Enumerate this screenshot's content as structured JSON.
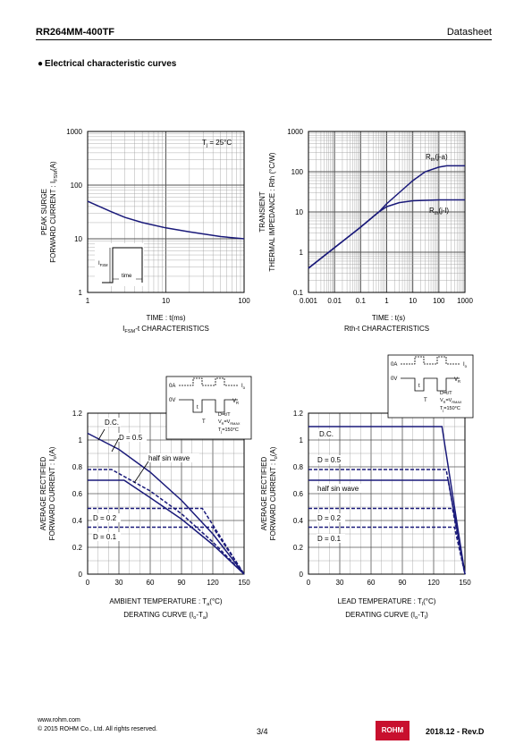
{
  "header": {
    "part_number": "RR264MM-400TF",
    "doc_type": "Datasheet",
    "section": "Electrical characteristic curves",
    "bullet": "●"
  },
  "chart_data": [
    {
      "type": "line",
      "id": "ifsm-t",
      "xscale": "log",
      "yscale": "log",
      "xlim": [
        1,
        100
      ],
      "ylim": [
        1,
        1000
      ],
      "x_ticks": [
        "1",
        "10",
        "100"
      ],
      "y_ticks": [
        "1",
        "10",
        "100",
        "1000"
      ],
      "xlabel": "TIME : t(ms)",
      "ylabel_line1": "PEAK SURGE",
      "ylabel_line2": "FORWARD CURRENT : I",
      "ylabel_sub": "FSM",
      "ylabel_unit": "(A)",
      "caption": "-t CHARACTERISTICS",
      "caption_prefix": "I",
      "caption_sub": "FSM",
      "annotation": "T",
      "annotation_sub": "j",
      "annotation_value": " = 25°C",
      "inset_label": "I",
      "inset_label_sub": "FSM",
      "inset_time": "time",
      "series": [
        {
          "values": [
            [
              1,
              50
            ],
            [
              2,
              32
            ],
            [
              3,
              25
            ],
            [
              5,
              20
            ],
            [
              10,
              16
            ],
            [
              20,
              13.5
            ],
            [
              50,
              11
            ],
            [
              100,
              10
            ]
          ]
        }
      ]
    },
    {
      "type": "line",
      "id": "rth-t",
      "xscale": "log",
      "yscale": "log",
      "xlim": [
        0.001,
        1000
      ],
      "ylim": [
        0.1,
        1000
      ],
      "x_ticks": [
        "0.001",
        "0.01",
        "0.1",
        "1",
        "10",
        "100",
        "1000"
      ],
      "y_ticks": [
        "0.1",
        "1",
        "10",
        "100",
        "1000"
      ],
      "xlabel": "TIME : t(s)",
      "ylabel_line1": "TRANSIENT",
      "ylabel_line2": "THERMAL IMPEDANCE : Rth (°C/W)",
      "caption": "Rth-t CHARACTERISTICS",
      "series": [
        {
          "name": "R",
          "name_sub": "th",
          "name_suffix": "(j-a)",
          "values": [
            [
              0.001,
              0.4
            ],
            [
              0.01,
              1.3
            ],
            [
              0.1,
              4.2
            ],
            [
              0.5,
              10
            ],
            [
              1,
              16
            ],
            [
              3,
              30
            ],
            [
              10,
              60
            ],
            [
              30,
              100
            ],
            [
              100,
              130
            ],
            [
              200,
              140
            ],
            [
              1000,
              140
            ]
          ]
        },
        {
          "name": "R",
          "name_sub": "th",
          "name_suffix": "(j-l)",
          "values": [
            [
              0.001,
              0.4
            ],
            [
              0.01,
              1.3
            ],
            [
              0.1,
              4.2
            ],
            [
              0.5,
              10
            ],
            [
              1,
              13.5
            ],
            [
              3,
              17
            ],
            [
              10,
              19
            ],
            [
              100,
              20
            ],
            [
              1000,
              20
            ]
          ]
        }
      ]
    },
    {
      "type": "line",
      "id": "io-ta",
      "xlim": [
        0,
        150
      ],
      "ylim": [
        0,
        1.2
      ],
      "x_ticks": [
        "0",
        "30",
        "60",
        "90",
        "120",
        "150"
      ],
      "y_ticks": [
        "0",
        "0.2",
        "0.4",
        "0.6",
        "0.8",
        "1",
        "1.2"
      ],
      "xlabel_prefix": "AMBIENT TEMPERATURE : T",
      "xlabel_sub": "a",
      "xlabel_unit": "(°C)",
      "ylabel_line1": "AVERAGE RECTIFIED",
      "ylabel_line2": "FORWARD CURRENT : I",
      "ylabel_sub": "o",
      "ylabel_unit": "(A)",
      "caption_prefix": "DERATING CURVE (I",
      "caption_sub1": "o",
      "caption_mid": "-T",
      "caption_sub2": "a",
      "caption_suffix": ")",
      "series": [
        {
          "name": "D.C.",
          "dash": false,
          "values": [
            [
              0,
              1.05
            ],
            [
              30,
              0.93
            ],
            [
              60,
              0.76
            ],
            [
              90,
              0.55
            ],
            [
              120,
              0.3
            ],
            [
              150,
              0
            ]
          ]
        },
        {
          "name": "D = 0.5",
          "dash": true,
          "values": [
            [
              0,
              0.78
            ],
            [
              23,
              0.78
            ],
            [
              60,
              0.62
            ],
            [
              90,
              0.45
            ],
            [
              120,
              0.24
            ],
            [
              150,
              0
            ]
          ]
        },
        {
          "name": "half sin wave",
          "dash": false,
          "values": [
            [
              0,
              0.7
            ],
            [
              35,
              0.7
            ],
            [
              60,
              0.57
            ],
            [
              90,
              0.41
            ],
            [
              120,
              0.22
            ],
            [
              150,
              0
            ]
          ]
        },
        {
          "name": "D = 0.2",
          "dash": true,
          "values": [
            [
              0,
              0.49
            ],
            [
              110,
              0.49
            ],
            [
              150,
              0
            ]
          ]
        },
        {
          "name": "D = 0.1",
          "dash": true,
          "values": [
            [
              0,
              0.35
            ],
            [
              120,
              0.35
            ],
            [
              150,
              0
            ]
          ]
        }
      ],
      "labels": [
        "D.C.",
        "D = 0.5",
        "half sin wave",
        "D = 0.2",
        "D = 0.1"
      ]
    },
    {
      "type": "line",
      "id": "io-tl",
      "xlim": [
        0,
        150
      ],
      "ylim": [
        0,
        1.2
      ],
      "x_ticks": [
        "0",
        "30",
        "60",
        "90",
        "120",
        "150"
      ],
      "y_ticks": [
        "0",
        "0.2",
        "0.4",
        "0.6",
        "0.8",
        "1",
        "1.2"
      ],
      "xlabel_prefix": "LEAD TEMPERATURE : T",
      "xlabel_sub": "l",
      "xlabel_unit": "(°C)",
      "ylabel_line1": "AVERAGE RECTIFIED",
      "ylabel_line2": "FORWARD CURRENT : I",
      "ylabel_sub": "o",
      "ylabel_unit": "(A)",
      "caption_prefix": "DERATING CURVE (I",
      "caption_sub1": "o",
      "caption_mid": "-T",
      "caption_sub2": "l",
      "caption_suffix": ")",
      "series": [
        {
          "name": "D.C.",
          "dash": false,
          "values": [
            [
              0,
              1.1
            ],
            [
              128,
              1.1
            ],
            [
              150,
              0
            ]
          ]
        },
        {
          "name": "D = 0.5",
          "dash": true,
          "values": [
            [
              0,
              0.78
            ],
            [
              132,
              0.78
            ],
            [
              150,
              0
            ]
          ]
        },
        {
          "name": "half sin wave",
          "dash": false,
          "values": [
            [
              0,
              0.7
            ],
            [
              134,
              0.7
            ],
            [
              150,
              0
            ]
          ]
        },
        {
          "name": "D = 0.2",
          "dash": true,
          "values": [
            [
              0,
              0.49
            ],
            [
              138,
              0.49
            ],
            [
              150,
              0
            ]
          ]
        },
        {
          "name": "D = 0.1",
          "dash": true,
          "values": [
            [
              0,
              0.35
            ],
            [
              140,
              0.35
            ],
            [
              150,
              0
            ]
          ]
        }
      ],
      "labels": [
        "D.C.",
        "D = 0.5",
        "half sin wave",
        "D = 0.2",
        "D = 0.1"
      ]
    }
  ],
  "inset": {
    "zero": "0A",
    "zero_v": "0V",
    "io": "I",
    "io_sub": "o",
    "vr": "V",
    "vr_sub": "R",
    "t": "t",
    "T": "T",
    "duty": "D=t/T",
    "vr_eq": "V",
    "vr_eq_sub": "R",
    "vr_eq_mid": "=V",
    "vr_eq_sub2": "RMAX",
    "tj": "T",
    "tj_sub": "j",
    "tj_val": "=150°C"
  },
  "colors": {
    "curve": "#1a1a7a",
    "grid": "#9a9a9a",
    "grid_major": "#555555",
    "brand": "#c8102e"
  },
  "footer": {
    "website": "www.rohm.com",
    "copyright": "© 2015  ROHM Co., Ltd. All rights reserved.",
    "page": "3/4",
    "logo_text": "ROHM",
    "revision": "2018.12 -  Rev.D"
  }
}
